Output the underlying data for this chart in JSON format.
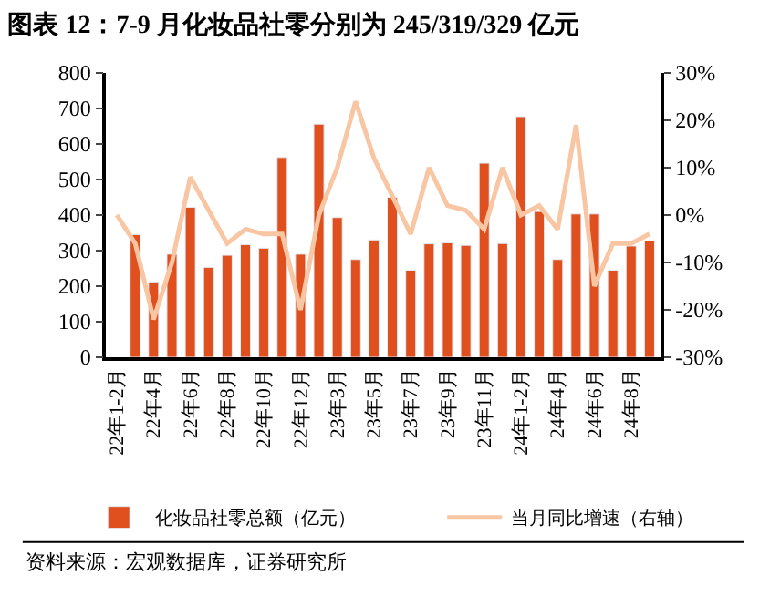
{
  "chart_data": {
    "type": "bar",
    "title": "图表 12：7-9 月化妆品社零分别为 245/319/329 亿元",
    "categories": [
      "22年1-2月",
      null,
      "22年4月",
      null,
      "22年6月",
      null,
      "22年8月",
      null,
      "22年10月",
      null,
      "22年12月",
      null,
      "23年3月",
      null,
      "23年5月",
      null,
      "23年7月",
      null,
      "23年9月",
      null,
      "23年11月",
      null,
      "24年1-2月",
      null,
      "24年4月",
      null,
      "24年6月",
      null,
      "24年8月",
      null
    ],
    "series": [
      {
        "name": "化妆品社零总额（亿元）",
        "color": "#e0501f",
        "values": [
          null,
          345,
          212,
          290,
          422,
          253,
          287,
          317,
          307,
          562,
          290,
          656,
          393,
          275,
          330,
          450,
          245,
          319,
          322,
          315,
          546,
          320,
          677,
          410,
          275,
          403,
          403,
          245,
          313,
          327
        ]
      },
      {
        "name": "当月同比增速（右轴）",
        "type": "line",
        "axis": "y2",
        "color": "#f8c6a3",
        "values": [
          0,
          -6,
          -22,
          -10,
          8,
          1,
          -6,
          -3,
          -4,
          -4,
          -20,
          0,
          10,
          24,
          12,
          4,
          -4,
          10,
          2,
          1,
          -3,
          10,
          0,
          2,
          -3,
          19,
          -15,
          -6,
          -6,
          -4
        ]
      }
    ],
    "ylim": [
      0,
      800
    ],
    "yticks": [
      0,
      100,
      200,
      300,
      400,
      500,
      600,
      700,
      800
    ],
    "y2lim": [
      -30,
      30
    ],
    "y2ticks": [
      {
        "value": -30,
        "label": "-30%"
      },
      {
        "value": -20,
        "label": "-20%"
      },
      {
        "value": -10,
        "label": "-10%"
      },
      {
        "value": 0,
        "label": "0%"
      },
      {
        "value": 10,
        "label": "10%"
      },
      {
        "value": 20,
        "label": "20%"
      },
      {
        "value": 30,
        "label": "30%"
      }
    ],
    "legend": "bottom",
    "marker": "none",
    "line_style": "solid",
    "annotations": [
      "资料来源：宏观数据库，证券研究所"
    ]
  }
}
